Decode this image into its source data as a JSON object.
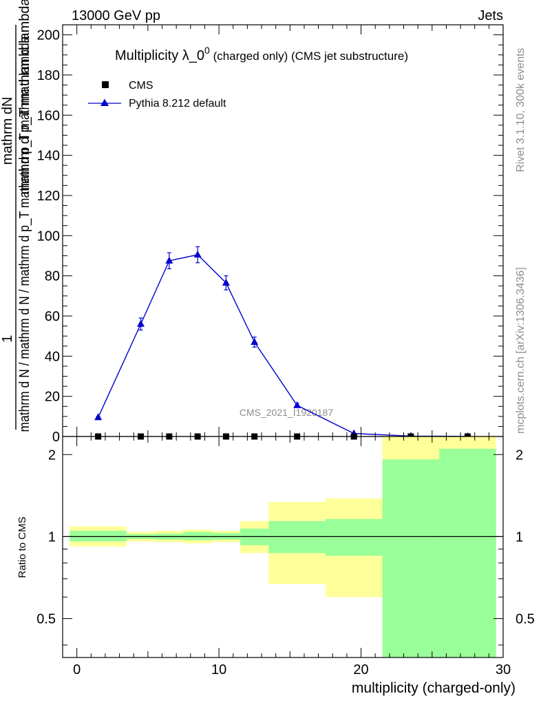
{
  "header": {
    "energy_label": "13000 GeV pp",
    "category_label": "Jets"
  },
  "side_labels": {
    "rivet": "Rivet 3.1.10,  300k events",
    "mcplots": "mcplots.cern.ch [arXiv:1306.3436]"
  },
  "watermark": "CMS_2021_I1920187",
  "colors": {
    "pythia": "#0000cc",
    "band_inner": "#99ff99",
    "band_outer": "#ffff99",
    "cms": "#000000"
  },
  "chart_data": [
    {
      "type": "line",
      "title_main": "Multiplicity λ_0",
      "title_sup": "0",
      "title_suffix": " (charged only) (CMS jet substructure)",
      "ylabel": {
        "one": "1",
        "line1": "mathrm d N / mathrm d N / mathrm d p_T mathrm d p_T mathrm d lambda",
        "line2": "mathrm dN",
        "line3": "mathrm d p_T mathrm d lambda"
      },
      "xlim": [
        -1,
        30
      ],
      "ylim": [
        0,
        205
      ],
      "yticks": [
        0,
        20,
        40,
        60,
        80,
        100,
        120,
        140,
        160,
        180,
        200
      ],
      "legend": {
        "position": "top-left",
        "cms": "CMS",
        "pythia": "Pythia 8.212 default"
      },
      "series": [
        {
          "name": "Pythia 8.212 default",
          "x": [
            1.5,
            4.5,
            6.5,
            8.5,
            10.5,
            12.5,
            15.5,
            19.5,
            23.5,
            27.5
          ],
          "y": [
            9.5,
            56,
            87.5,
            90.5,
            76.5,
            47,
            15.5,
            1.5,
            0.2,
            0.05
          ],
          "err": [
            0.5,
            3,
            4,
            4,
            3.5,
            2.5,
            1,
            0.3,
            0.1,
            0.05
          ]
        },
        {
          "name": "CMS",
          "x": [
            1.5,
            4.5,
            6.5,
            8.5,
            10.5,
            12.5,
            15.5,
            19.5,
            23.5,
            27.5
          ],
          "y": [
            0,
            0,
            0,
            0,
            0,
            0,
            0,
            0,
            0,
            0
          ]
        }
      ]
    },
    {
      "type": "area",
      "ylabel": "Ratio to CMS",
      "xlabel": "multiplicity (charged-only)",
      "xlim": [
        -1,
        30
      ],
      "ylim": [
        0.36,
        2.33
      ],
      "yscale": "log",
      "yticks": [
        0.5,
        1,
        2
      ],
      "xticks": [
        0,
        10,
        20,
        30
      ],
      "bands": [
        {
          "x0": -0.5,
          "x1": 3.5,
          "inner": [
            0.96,
            1.05
          ],
          "outer": [
            0.92,
            1.09
          ]
        },
        {
          "x0": 3.5,
          "x1": 5.5,
          "inner": [
            0.98,
            1.02
          ],
          "outer": [
            0.96,
            1.04
          ]
        },
        {
          "x0": 5.5,
          "x1": 7.5,
          "inner": [
            0.975,
            1.025
          ],
          "outer": [
            0.955,
            1.05
          ]
        },
        {
          "x0": 7.5,
          "x1": 9.5,
          "inner": [
            0.97,
            1.04
          ],
          "outer": [
            0.945,
            1.06
          ]
        },
        {
          "x0": 9.5,
          "x1": 11.5,
          "inner": [
            0.975,
            1.03
          ],
          "outer": [
            0.955,
            1.05
          ]
        },
        {
          "x0": 11.5,
          "x1": 13.5,
          "inner": [
            0.93,
            1.07
          ],
          "outer": [
            0.87,
            1.14
          ]
        },
        {
          "x0": 13.5,
          "x1": 17.5,
          "inner": [
            0.87,
            1.14
          ],
          "outer": [
            0.67,
            1.34
          ]
        },
        {
          "x0": 17.5,
          "x1": 21.5,
          "inner": [
            0.85,
            1.16
          ],
          "outer": [
            0.6,
            1.38
          ]
        },
        {
          "x0": 21.5,
          "x1": 25.5,
          "inner": [
            0.36,
            1.92
          ],
          "outer": [
            0.36,
            2.33
          ]
        },
        {
          "x0": 25.5,
          "x1": 29.5,
          "inner": [
            0.36,
            2.1
          ],
          "outer": [
            0.36,
            2.33
          ]
        }
      ]
    }
  ]
}
